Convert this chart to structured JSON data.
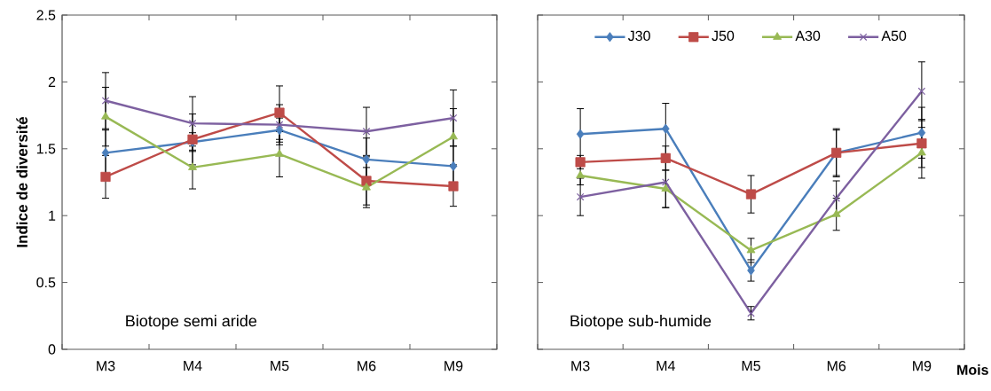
{
  "chart_data": [
    {
      "type": "line",
      "ylabel": "Indice de diversité",
      "categories": [
        "M3",
        "M4",
        "M5",
        "M6",
        "M9"
      ],
      "ylim": [
        0,
        2.5
      ],
      "yticks": [
        0,
        0.5,
        1,
        1.5,
        2,
        2.5
      ],
      "grid": false,
      "legend": false,
      "annotations": [
        "Biotope semi aride"
      ],
      "series": [
        {
          "color": "#4a7ebb",
          "marker": "diamond",
          "values": [
            1.47,
            1.55,
            1.64,
            1.42,
            1.37
          ],
          "errors": [
            0.17,
            0.07,
            0.09,
            0.16,
            0.15
          ]
        },
        {
          "color": "#be4b48",
          "marker": "square",
          "values": [
            1.29,
            1.57,
            1.77,
            1.26,
            1.22
          ],
          "errors": [
            0.16,
            0.19,
            0.2,
            0.18,
            0.15
          ]
        },
        {
          "color": "#98b954",
          "marker": "triangle",
          "values": [
            1.74,
            1.36,
            1.46,
            1.21,
            1.59
          ],
          "errors": [
            0.22,
            0.16,
            0.17,
            0.15,
            0.21
          ]
        },
        {
          "color": "#7d60a0",
          "marker": "cross",
          "values": [
            1.86,
            1.69,
            1.68,
            1.63,
            1.73
          ],
          "errors": [
            0.21,
            0.2,
            0.15,
            0.18,
            0.21
          ]
        }
      ]
    },
    {
      "type": "line",
      "xlabel": "Mois",
      "categories": [
        "M3",
        "M4",
        "M5",
        "M6",
        "M9"
      ],
      "ylim": [
        0,
        2.5
      ],
      "yticks": [
        0,
        0.5,
        1,
        1.5,
        2,
        2.5
      ],
      "tick_labels": "x",
      "grid": false,
      "legend": "top",
      "annotations": [
        "Biotope sub-humide"
      ],
      "series": [
        {
          "name": "J30",
          "color": "#4a7ebb",
          "marker": "diamond",
          "values": [
            1.61,
            1.65,
            0.59,
            1.47,
            1.62
          ],
          "errors": [
            0.19,
            0.19,
            0.08,
            0.18,
            0.19
          ]
        },
        {
          "name": "J50",
          "color": "#be4b48",
          "marker": "square",
          "values": [
            1.4,
            1.43,
            1.16,
            1.47,
            1.54
          ],
          "errors": [
            0.05,
            0.09,
            0.14,
            0.17,
            0.18
          ]
        },
        {
          "name": "A30",
          "color": "#98b954",
          "marker": "triangle",
          "values": [
            1.3,
            1.2,
            0.74,
            1.01,
            1.47
          ],
          "errors": [
            0.07,
            0.14,
            0.09,
            0.12,
            0.19
          ]
        },
        {
          "name": "A50",
          "color": "#7d60a0",
          "marker": "cross",
          "values": [
            1.14,
            1.25,
            0.27,
            1.13,
            1.93
          ],
          "errors": [
            0.14,
            0.19,
            0.05,
            0.13,
            0.22
          ]
        }
      ]
    }
  ]
}
